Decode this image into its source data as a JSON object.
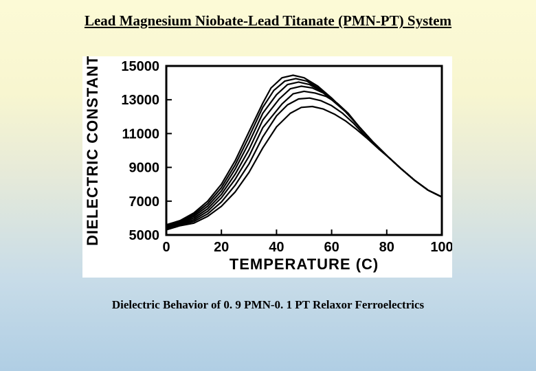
{
  "title": "Lead Magnesium Niobate-Lead Titanate (PMN-PT) System",
  "title_fontsize": 21,
  "caption": "Dielectric Behavior of 0. 9 PMN-0. 1 PT Relaxor Ferroelectrics",
  "caption_fontsize": 17,
  "chart": {
    "type": "line",
    "background_color": "#ffffff",
    "line_color": "#000000",
    "line_width": 2.2,
    "axis_color": "#000000",
    "axis_width": 3,
    "tick_length_in": 8,
    "tick_fontsize": 20,
    "label_fontsize": 22,
    "xlabel": "TEMPERATURE (C)",
    "ylabel": "DIELECTRIC CONSTANT",
    "xlim": [
      0,
      100
    ],
    "xtick_step": 20,
    "xticks": [
      0,
      20,
      40,
      60,
      80,
      100
    ],
    "ylim": [
      5000,
      15000
    ],
    "ytick_step": 2000,
    "yticks": [
      5000,
      7000,
      9000,
      11000,
      13000,
      15000
    ],
    "series": [
      [
        [
          0,
          5600
        ],
        [
          5,
          5850
        ],
        [
          10,
          6300
        ],
        [
          15,
          7000
        ],
        [
          20,
          8000
        ],
        [
          25,
          9400
        ],
        [
          30,
          11100
        ],
        [
          35,
          12800
        ],
        [
          38,
          13700
        ],
        [
          42,
          14300
        ],
        [
          46,
          14450
        ],
        [
          50,
          14300
        ],
        [
          55,
          13800
        ],
        [
          60,
          13100
        ],
        [
          65,
          12300
        ],
        [
          70,
          11400
        ],
        [
          75,
          10500
        ],
        [
          80,
          9700
        ],
        [
          85,
          8950
        ],
        [
          90,
          8250
        ],
        [
          95,
          7650
        ],
        [
          100,
          7250
        ]
      ],
      [
        [
          0,
          5550
        ],
        [
          5,
          5800
        ],
        [
          10,
          6200
        ],
        [
          15,
          6850
        ],
        [
          20,
          7800
        ],
        [
          25,
          9150
        ],
        [
          30,
          10800
        ],
        [
          35,
          12550
        ],
        [
          39,
          13550
        ],
        [
          43,
          14100
        ],
        [
          47,
          14250
        ],
        [
          51,
          14100
        ],
        [
          55,
          13700
        ],
        [
          60,
          13050
        ],
        [
          65,
          12300
        ],
        [
          70,
          11400
        ],
        [
          75,
          10500
        ],
        [
          80,
          9700
        ],
        [
          85,
          8950
        ],
        [
          90,
          8250
        ],
        [
          95,
          7650
        ],
        [
          100,
          7250
        ]
      ],
      [
        [
          0,
          5500
        ],
        [
          5,
          5750
        ],
        [
          10,
          6100
        ],
        [
          15,
          6700
        ],
        [
          20,
          7600
        ],
        [
          25,
          8900
        ],
        [
          30,
          10450
        ],
        [
          35,
          12200
        ],
        [
          40,
          13300
        ],
        [
          44,
          13900
        ],
        [
          48,
          14050
        ],
        [
          52,
          13900
        ],
        [
          56,
          13550
        ],
        [
          60,
          13000
        ],
        [
          65,
          12300
        ],
        [
          70,
          11400
        ],
        [
          75,
          10500
        ],
        [
          80,
          9700
        ],
        [
          85,
          8950
        ],
        [
          90,
          8250
        ],
        [
          95,
          7650
        ],
        [
          100,
          7250
        ]
      ],
      [
        [
          0,
          5450
        ],
        [
          5,
          5700
        ],
        [
          10,
          6000
        ],
        [
          15,
          6550
        ],
        [
          20,
          7400
        ],
        [
          25,
          8600
        ],
        [
          30,
          10050
        ],
        [
          35,
          11800
        ],
        [
          41,
          13050
        ],
        [
          45,
          13650
        ],
        [
          49,
          13800
        ],
        [
          53,
          13700
        ],
        [
          57,
          13400
        ],
        [
          61,
          12900
        ],
        [
          65,
          12300
        ],
        [
          70,
          11400
        ],
        [
          75,
          10500
        ],
        [
          80,
          9700
        ],
        [
          85,
          8950
        ],
        [
          90,
          8250
        ],
        [
          95,
          7650
        ],
        [
          100,
          7250
        ]
      ],
      [
        [
          0,
          5400
        ],
        [
          5,
          5650
        ],
        [
          10,
          5900
        ],
        [
          15,
          6400
        ],
        [
          20,
          7200
        ],
        [
          25,
          8300
        ],
        [
          30,
          9650
        ],
        [
          35,
          11350
        ],
        [
          42,
          12750
        ],
        [
          46,
          13350
        ],
        [
          50,
          13500
        ],
        [
          54,
          13400
        ],
        [
          58,
          13200
        ],
        [
          62,
          12800
        ],
        [
          66,
          12200
        ],
        [
          70,
          11400
        ],
        [
          75,
          10500
        ],
        [
          80,
          9700
        ],
        [
          85,
          8950
        ],
        [
          90,
          8250
        ],
        [
          95,
          7650
        ],
        [
          100,
          7250
        ]
      ],
      [
        [
          0,
          5350
        ],
        [
          5,
          5600
        ],
        [
          10,
          5800
        ],
        [
          15,
          6250
        ],
        [
          20,
          6950
        ],
        [
          25,
          7950
        ],
        [
          30,
          9200
        ],
        [
          35,
          10800
        ],
        [
          40,
          12050
        ],
        [
          44,
          12700
        ],
        [
          48,
          13050
        ],
        [
          52,
          13100
        ],
        [
          56,
          12950
        ],
        [
          60,
          12650
        ],
        [
          64,
          12200
        ],
        [
          68,
          11600
        ],
        [
          72,
          10900
        ],
        [
          76,
          10300
        ],
        [
          80,
          9700
        ],
        [
          85,
          8950
        ],
        [
          90,
          8250
        ],
        [
          95,
          7650
        ],
        [
          100,
          7250
        ]
      ],
      [
        [
          0,
          5300
        ],
        [
          5,
          5550
        ],
        [
          10,
          5700
        ],
        [
          15,
          6100
        ],
        [
          20,
          6700
        ],
        [
          25,
          7550
        ],
        [
          30,
          8700
        ],
        [
          35,
          10150
        ],
        [
          40,
          11400
        ],
        [
          45,
          12200
        ],
        [
          49,
          12550
        ],
        [
          53,
          12600
        ],
        [
          57,
          12450
        ],
        [
          61,
          12150
        ],
        [
          65,
          11750
        ],
        [
          69,
          11250
        ],
        [
          73,
          10700
        ],
        [
          77,
          10100
        ],
        [
          81,
          9550
        ],
        [
          85,
          8950
        ],
        [
          90,
          8250
        ],
        [
          95,
          7650
        ],
        [
          100,
          7250
        ]
      ]
    ]
  }
}
